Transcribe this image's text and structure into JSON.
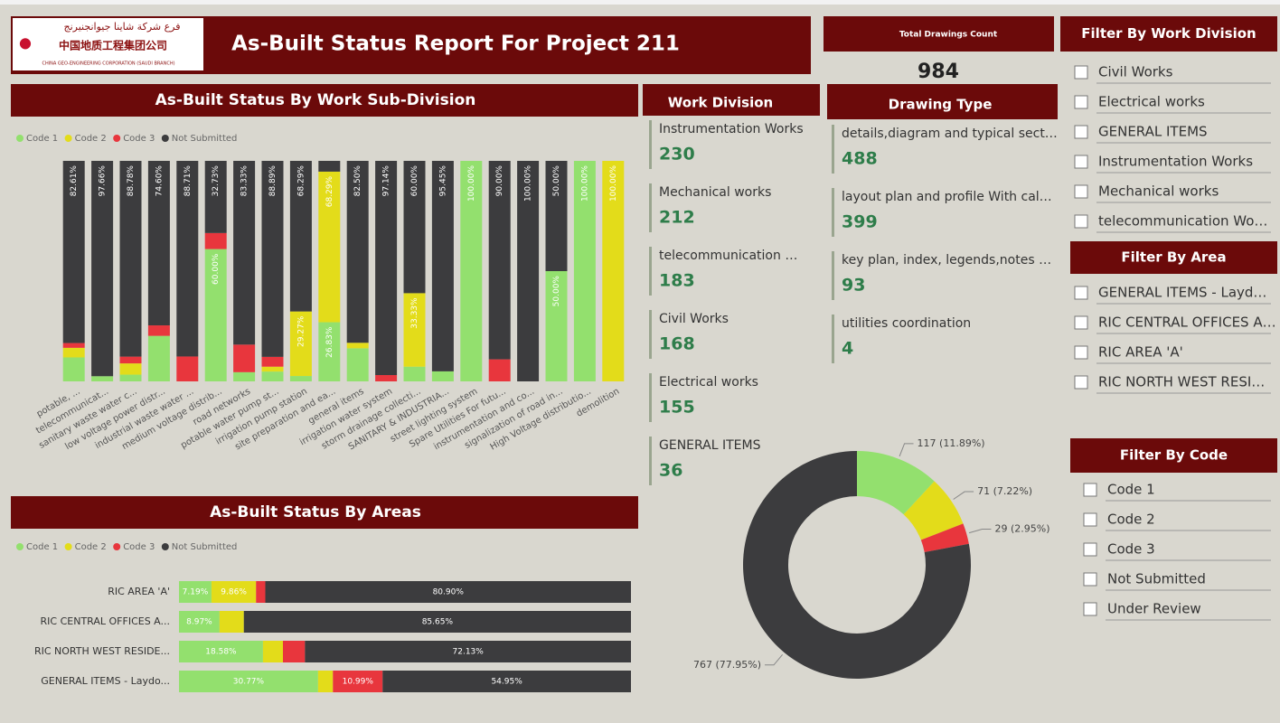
{
  "header": {
    "logo_arabic": "فرع شركة شاينا جيوانجنيرنج",
    "logo_chinese": "中国地质工程集团公司",
    "logo_english": "CHINA GEO-ENGINEERING CORPORATION (SAUDI BRANCH)",
    "title": "As-Built Status Report For Project 211"
  },
  "total_drawings": {
    "label": "Total Drawings Count",
    "value": 984
  },
  "work_division": {
    "title": "Work Division",
    "items": [
      {
        "name": "Instrumentation Works",
        "count": 230
      },
      {
        "name": "Mechanical works",
        "count": 212
      },
      {
        "name": "telecommunication …",
        "count": 183
      },
      {
        "name": "Civil Works",
        "count": 168
      },
      {
        "name": "Electrical works",
        "count": 155
      },
      {
        "name": "GENERAL ITEMS",
        "count": 36
      }
    ]
  },
  "drawing_type": {
    "title": "Drawing Type",
    "items": [
      {
        "name": "details,diagram and typical sect…",
        "count": 488
      },
      {
        "name": "layout plan and profile With cal…",
        "count": 399
      },
      {
        "name": "key plan, index, legends,notes …",
        "count": 93
      },
      {
        "name": "utilities coordination",
        "count": 4
      }
    ]
  },
  "filters": [
    {
      "title": "Filter By Work Division",
      "options": [
        "Civil Works",
        "Electrical works",
        "GENERAL ITEMS",
        "Instrumentation Works",
        "Mechanical works",
        "telecommunication Wo…"
      ]
    },
    {
      "title": "Filter By Area",
      "options": [
        "GENERAL ITEMS - Layd…",
        "RIC CENTRAL OFFICES A…",
        "RIC AREA 'A'",
        "RIC NORTH WEST RESI…"
      ]
    },
    {
      "title": "Filter By Code",
      "options": [
        "Code 1",
        "Code 2",
        "Code 3",
        "Not Submitted",
        "Under Review"
      ]
    }
  ],
  "chart_data": [
    {
      "type": "bar",
      "stacked": true,
      "orientation": "vertical",
      "title": "As-Built Status By Work Sub-Division",
      "categories": [
        "potable, ...",
        "telecommunicat...",
        "sanitary waste water c...",
        "low voltage power distr...",
        "industrial waste water ...",
        "medium voltage distrib...",
        "road networks",
        "potable water pump st...",
        "irrigation pump station",
        "site preparation and ea...",
        "general items",
        "irrigation water system",
        "storm drainage collecti...",
        "SANITARY & INDUSTRIA...",
        "street lighting system",
        "Spare Utilities For futu...",
        "instrumentation and co...",
        "signalization of road in...",
        "High Voltage distributio...",
        "demolition"
      ],
      "series": [
        {
          "name": "Code 1",
          "color": "#93e06e",
          "values": [
            10.87,
            2.34,
            3.06,
            20.64,
            0,
            60.0,
            4.17,
            4.45,
            2.44,
            26.83,
            15.0,
            0,
            6.67,
            4.55,
            100,
            0,
            0,
            50.0,
            100,
            0
          ],
          "value_labels": [
            null,
            null,
            null,
            null,
            null,
            "60.00%",
            null,
            null,
            null,
            "26.83%",
            null,
            null,
            null,
            null,
            "100.00%",
            null,
            null,
            "50.00%",
            "100.00%",
            null
          ]
        },
        {
          "name": "Code 2",
          "color": "#e3dc1a",
          "values": [
            4.35,
            0,
            5.1,
            0,
            0,
            0,
            0,
            2.22,
            29.27,
            68.29,
            2.5,
            0,
            33.33,
            0,
            0,
            0,
            0,
            0,
            0,
            100
          ],
          "value_labels": [
            null,
            null,
            null,
            null,
            null,
            null,
            null,
            null,
            "29.27%",
            "68.29%",
            null,
            null,
            "33.33%",
            null,
            null,
            null,
            null,
            null,
            null,
            "100.00%"
          ]
        },
        {
          "name": "Code 3",
          "color": "#e8363d",
          "values": [
            2.17,
            0,
            3.06,
            4.76,
            11.29,
            7.27,
            12.5,
            4.44,
            0,
            0,
            0,
            2.86,
            0,
            0,
            0,
            10.0,
            0,
            0,
            0,
            0
          ]
        },
        {
          "name": "Not Submitted",
          "color": "#3c3c3e",
          "values": [
            82.61,
            97.66,
            88.78,
            74.6,
            88.71,
            32.73,
            83.33,
            88.89,
            68.29,
            4.88,
            82.5,
            97.14,
            60.0,
            95.45,
            0,
            90.0,
            100,
            50.0,
            0,
            0
          ],
          "value_labels": [
            "82.61%",
            "97.66%",
            "88.78%",
            "74.60%",
            "88.71%",
            "32.73%",
            "83.33%",
            "88.89%",
            "68.29%",
            null,
            "82.50%",
            "97.14%",
            "60.00%",
            "95.45%",
            null,
            "90.00%",
            "100.00%",
            "50.00%",
            null,
            null
          ]
        }
      ]
    },
    {
      "type": "bar",
      "stacked": true,
      "orientation": "horizontal",
      "title": "As-Built Status By Areas",
      "categories": [
        "RIC AREA 'A'",
        "RIC CENTRAL OFFICES A...",
        "RIC NORTH WEST RESIDE...",
        "GENERAL ITEMS - Laydo..."
      ],
      "series": [
        {
          "name": "Code 1",
          "color": "#93e06e",
          "values": [
            7.19,
            8.97,
            18.58,
            30.77
          ],
          "value_labels": [
            "7.19%",
            "8.97%",
            "18.58%",
            "30.77%"
          ]
        },
        {
          "name": "Code 2",
          "color": "#e3dc1a",
          "values": [
            9.86,
            5.38,
            4.42,
            3.29
          ],
          "value_labels": [
            "9.86%",
            null,
            null,
            null
          ]
        },
        {
          "name": "Code 3",
          "color": "#e8363d",
          "values": [
            2.05,
            0,
            4.87,
            10.99
          ],
          "value_labels": [
            null,
            null,
            null,
            "10.99%"
          ]
        },
        {
          "name": "Not Submitted",
          "color": "#3c3c3e",
          "values": [
            80.9,
            85.65,
            72.13,
            54.95
          ],
          "value_labels": [
            "80.90%",
            "85.65%",
            "72.13%",
            "54.95%"
          ]
        }
      ]
    },
    {
      "type": "donut",
      "values": [
        117,
        71,
        29,
        767
      ],
      "value_labels": [
        "117 (11.89%)",
        "71 (7.22%)",
        "29 (2.95%)",
        "767 (77.95%)"
      ],
      "colors": [
        "#93e06e",
        "#e3dc1a",
        "#e8363d",
        "#3c3c3e"
      ]
    }
  ]
}
